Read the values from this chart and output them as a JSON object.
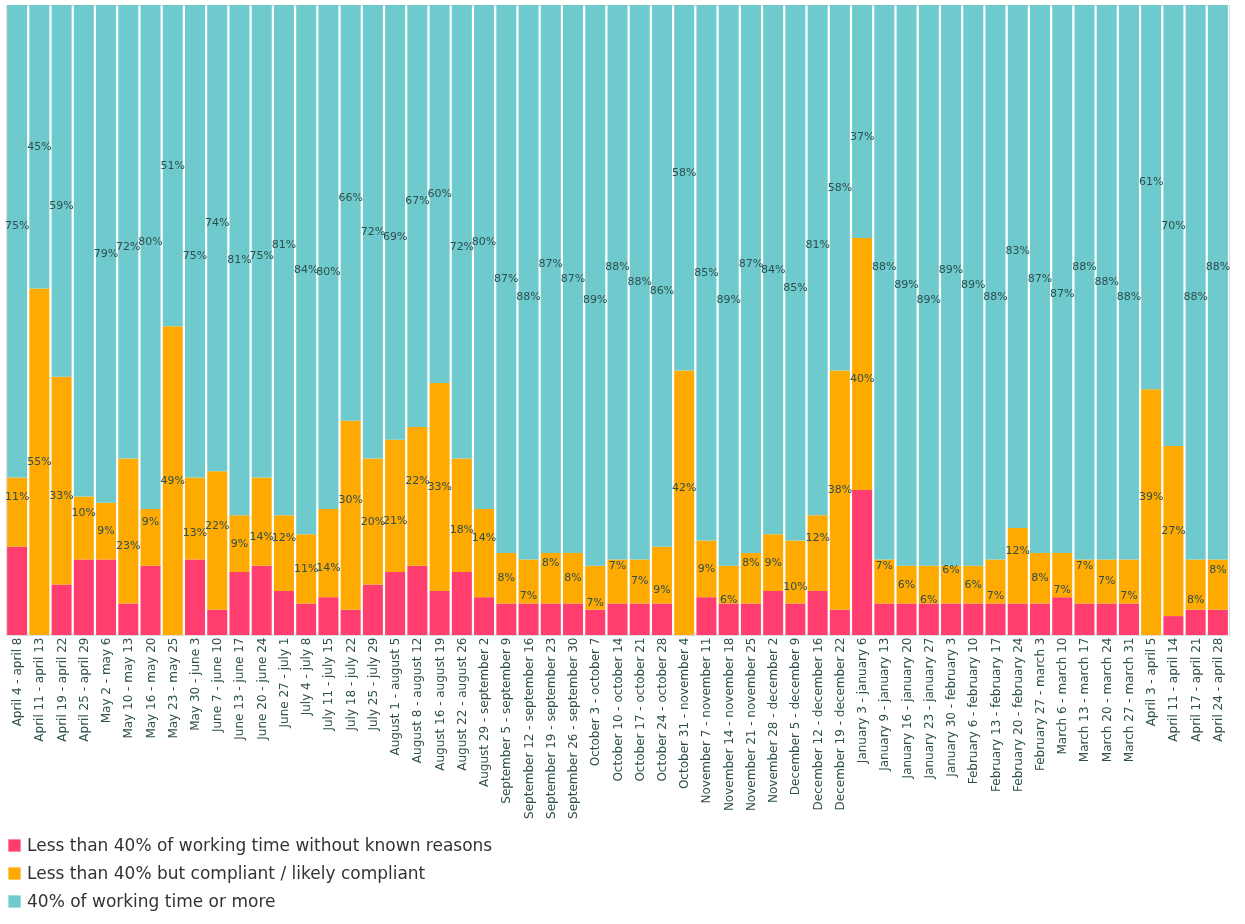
{
  "chart_data": {
    "type": "bar",
    "stacked": true,
    "legend": "bottom",
    "grid": false,
    "categories": [
      "April 4 - april 8",
      "April 11 - april 13",
      "April 19 - april 22",
      "April 25 - april 29",
      "May 2 - may 6",
      "May 10 - may 13",
      "May 16 - may 20",
      "May 23 - may 25",
      "May 30 - june 3",
      "June 7 - june 10",
      "June 13 - june 17",
      "June 20 - june 24",
      "June 27 - july 1",
      "July 4 - july 8",
      "July 11 - july 15",
      "July 18 - july 22",
      "July 25 - july 29",
      "August 1 - august 5",
      "August 8 - august 12",
      "August 16 - august 19",
      "August 22 - august 26",
      "August 29 - september 2",
      "September 5 - september 9",
      "September 12 - september 16",
      "September 19 - september 23",
      "September 26 - september 30",
      "October 3 - october 7",
      "October 10 - october 14",
      "October 17 - october 21",
      "October 24 - october 28",
      "October 31 - november 4",
      "November 7 - november 11",
      "November 14 - november 18",
      "November 21 - november 25",
      "November 28 - december 2",
      "December 5 - december 9",
      "December 12 - december 16",
      "December 19 - december 22",
      "January 3 - january 6",
      "January 9 - january 13",
      "January 16 - january 20",
      "January 23 - january 27",
      "January 30 - february 3",
      "February 6 - february 10",
      "February 13 - february 17",
      "February 20 - february 24",
      "February 27 - march 3",
      "March 6 - march 10",
      "March 13 - march 17",
      "March 20 - march 24",
      "March 27 - march 31",
      "April 3 - april 5",
      "April 11 - april 14",
      "April 17 - april 21",
      "April 24 - april 28"
    ],
    "series": [
      {
        "name": "Less than 40% of working time without known reasons",
        "color": "#ff3d6e",
        "values": [
          14,
          0,
          8,
          12,
          12,
          5,
          11,
          0,
          12,
          4,
          10,
          11,
          7,
          5,
          6,
          4,
          8,
          10,
          11,
          7,
          10,
          6,
          5,
          5,
          5,
          5,
          4,
          5,
          5,
          5,
          0,
          6,
          5,
          5,
          7,
          5,
          7,
          4,
          23,
          5,
          5,
          5,
          5,
          5,
          5,
          5,
          5,
          6,
          5,
          5,
          5,
          0,
          3,
          4,
          4
        ]
      },
      {
        "name": "Less than 40% but compliant / likely compliant",
        "color": "#ffaa00",
        "values": [
          11,
          55,
          33,
          10,
          9,
          23,
          9,
          49,
          13,
          22,
          9,
          14,
          12,
          11,
          14,
          30,
          20,
          21,
          22,
          33,
          18,
          14,
          8,
          7,
          8,
          8,
          7,
          7,
          7,
          9,
          42,
          9,
          6,
          8,
          9,
          10,
          12,
          38,
          40,
          7,
          6,
          6,
          6,
          6,
          7,
          12,
          8,
          7,
          7,
          7,
          7,
          39,
          27,
          8,
          8
        ],
        "value_labels": [
          "11%",
          "55%",
          "33%",
          "10%",
          "9%",
          "23%",
          "9%",
          "49%",
          "13%",
          "22%",
          "9%",
          "14%",
          "12%",
          "11%",
          "14%",
          "30%",
          "20%",
          "21%",
          "22%",
          "33%",
          "18%",
          "14%",
          "8%",
          "7%",
          "8%",
          "8%",
          "7%",
          "7%",
          "7%",
          "9%",
          "42%",
          "9%",
          "6%",
          "8%",
          "9%",
          "10%",
          "12%",
          "38%",
          "40%",
          "7%",
          "6%",
          "6%",
          "6%",
          "6%",
          "7%",
          "12%",
          "8%",
          "7%",
          "7%",
          "7%",
          "7%",
          "39%",
          "27%",
          "8%",
          "8%"
        ]
      },
      {
        "name": "40% of working time or more",
        "color": "#6ecacc",
        "values": [
          75,
          45,
          59,
          78,
          79,
          72,
          80,
          51,
          75,
          74,
          81,
          75,
          81,
          84,
          80,
          66,
          72,
          69,
          67,
          60,
          72,
          80,
          87,
          88,
          87,
          87,
          89,
          88,
          88,
          86,
          58,
          85,
          89,
          87,
          84,
          85,
          81,
          58,
          37,
          88,
          89,
          89,
          89,
          89,
          88,
          83,
          87,
          87,
          88,
          88,
          88,
          61,
          70,
          88,
          88
        ],
        "value_labels": [
          "75%",
          "45%",
          "59%",
          null,
          "79%",
          "72%",
          "80%",
          "51%",
          "75%",
          "74%",
          "81%",
          "75%",
          "81%",
          "84%",
          "80%",
          "66%",
          "72%",
          "69%",
          "67%",
          "60%",
          "72%",
          "80%",
          "87%",
          "88%",
          "87%",
          "87%",
          "89%",
          "88%",
          "88%",
          "86%",
          "58%",
          "85%",
          "89%",
          "87%",
          "84%",
          "85%",
          "81%",
          "58%",
          "37%",
          "88%",
          "89%",
          "89%",
          "89%",
          "89%",
          "88%",
          "83%",
          "87%",
          "87%",
          "88%",
          "88%",
          "88%",
          "61%",
          "70%",
          "88%",
          "88%"
        ]
      }
    ]
  }
}
